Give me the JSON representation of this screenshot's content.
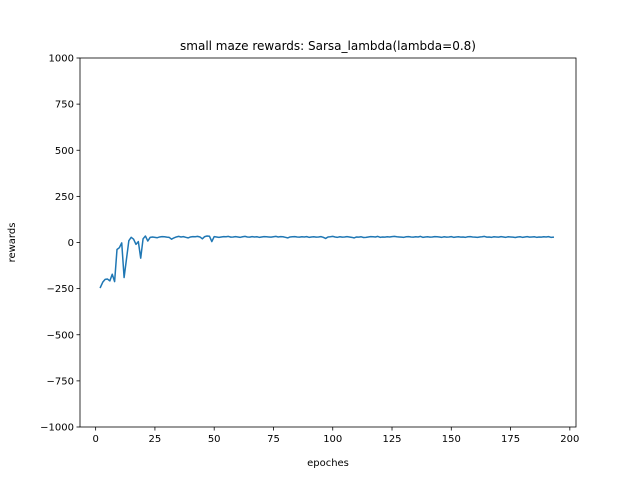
{
  "chart_data": {
    "type": "line",
    "title": "small maze rewards: Sarsa_lambda(lambda=0.8)",
    "xlabel": "epoches",
    "ylabel": "rewards",
    "xlim": [
      -6.6,
      202.6
    ],
    "ylim": [
      -1000,
      1000
    ],
    "xticks": [
      0,
      25,
      50,
      75,
      100,
      125,
      150,
      175,
      200
    ],
    "yticks": [
      -1000,
      -750,
      -500,
      -250,
      0,
      250,
      500,
      750,
      1000
    ],
    "grid": false,
    "legend": "none",
    "colors": {
      "line": "#1f77b4",
      "axes": "#000000",
      "background": "#ffffff"
    },
    "series": [
      {
        "x": [
          2,
          3,
          4,
          5,
          6,
          7,
          8,
          9,
          10,
          11,
          12,
          13,
          14,
          15,
          16,
          17,
          18,
          19,
          20,
          21,
          22,
          23,
          24,
          25,
          26,
          27,
          28,
          29,
          30,
          31,
          32,
          33,
          34,
          35,
          36,
          37,
          38,
          39,
          40,
          41,
          42,
          43,
          44,
          45,
          46,
          47,
          48,
          49,
          50,
          51,
          52,
          53,
          54,
          55,
          56,
          57,
          58,
          59,
          60,
          61,
          62,
          63,
          64,
          65,
          66,
          67,
          68,
          69,
          70,
          71,
          72,
          73,
          74,
          75,
          76,
          77,
          78,
          79,
          80,
          81,
          82,
          83,
          84,
          85,
          86,
          87,
          88,
          89,
          90,
          91,
          92,
          93,
          94,
          95,
          96,
          97,
          98,
          99,
          100,
          101,
          102,
          103,
          104,
          105,
          106,
          107,
          108,
          109,
          110,
          111,
          112,
          113,
          114,
          115,
          116,
          117,
          118,
          119,
          120,
          121,
          122,
          123,
          124,
          125,
          126,
          127,
          128,
          129,
          130,
          131,
          132,
          133,
          134,
          135,
          136,
          137,
          138,
          139,
          140,
          141,
          142,
          143,
          144,
          145,
          146,
          147,
          148,
          149,
          150,
          151,
          152,
          153,
          154,
          155,
          156,
          157,
          158,
          159,
          160,
          161,
          162,
          163,
          164,
          165,
          166,
          167,
          168,
          169,
          170,
          171,
          172,
          173,
          174,
          175,
          176,
          177,
          178,
          179,
          180,
          181,
          182,
          183,
          184,
          185,
          186,
          187,
          188,
          189,
          190,
          191,
          192,
          193
        ],
        "y": [
          -243,
          -215,
          -200,
          -198,
          -208,
          -172,
          -212,
          -38,
          -28,
          -2,
          -190,
          -90,
          10,
          28,
          18,
          -10,
          5,
          -85,
          20,
          35,
          8,
          28,
          30,
          28,
          26,
          30,
          32,
          31,
          29,
          28,
          18,
          25,
          30,
          33,
          30,
          32,
          28,
          25,
          30,
          32,
          31,
          33,
          30,
          20,
          32,
          35,
          34,
          5,
          32,
          30,
          28,
          30,
          32,
          31,
          33,
          29,
          30,
          32,
          30,
          28,
          31,
          33,
          30,
          29,
          32,
          30,
          31,
          28,
          30,
          32,
          31,
          30,
          29,
          31,
          33,
          30,
          32,
          31,
          28,
          25,
          30,
          31,
          32,
          30,
          29,
          31,
          30,
          32,
          28,
          30,
          31,
          29,
          30,
          32,
          28,
          22,
          30,
          31,
          33,
          30,
          28,
          31,
          29,
          30,
          32,
          30,
          28,
          25,
          30,
          29,
          31,
          27,
          28,
          30,
          32,
          31,
          30,
          33,
          28,
          30,
          29,
          31,
          30,
          32,
          33,
          31,
          30,
          29,
          28,
          31,
          32,
          30,
          29,
          31,
          30,
          33,
          28,
          30,
          31,
          29,
          30,
          32,
          31,
          30,
          28,
          31,
          29,
          30,
          32,
          28,
          30,
          31,
          29,
          30,
          28,
          31,
          32,
          30,
          29,
          28,
          30,
          31,
          33,
          29,
          30,
          28,
          31,
          30,
          29,
          32,
          30,
          28,
          31,
          30,
          29,
          27,
          30,
          31,
          28,
          30,
          32,
          29,
          30,
          31,
          28,
          30,
          29,
          31,
          30,
          32,
          28,
          29
        ]
      }
    ]
  }
}
